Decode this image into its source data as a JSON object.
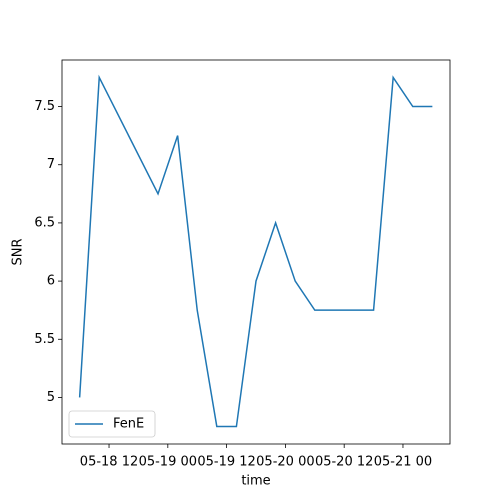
{
  "chart_data": {
    "type": "line",
    "x_label": "time",
    "y_label": "SNR",
    "x": [
      "05-18 06",
      "05-18 10",
      "05-18 22",
      "05-19 02",
      "05-19 06",
      "05-19 10",
      "05-19 14",
      "05-19 18",
      "05-19 22",
      "05-20 02",
      "05-20 06",
      "05-20 10",
      "05-20 14",
      "05-20 18",
      "05-20 22",
      "05-21 02",
      "05-21 06"
    ],
    "series": [
      {
        "name": "FenE",
        "color": "#1f77b4",
        "values": [
          5.0,
          7.75,
          6.75,
          7.25,
          5.75,
          4.75,
          4.75,
          6.0,
          6.5,
          6.0,
          5.75,
          5.75,
          5.75,
          5.75,
          7.75,
          7.5,
          7.5
        ]
      }
    ],
    "xlim": [
      "05-18 02:24",
      "05-21 09:36"
    ],
    "xticks": [
      "05-18 12",
      "05-19 00",
      "05-19 12",
      "05-20 00",
      "05-20 12",
      "05-21 00"
    ],
    "ylim": [
      4.6,
      7.9
    ],
    "yticks": [
      5.0,
      5.5,
      6.0,
      6.5,
      7.0,
      7.5
    ],
    "legend_position": "lower left"
  }
}
